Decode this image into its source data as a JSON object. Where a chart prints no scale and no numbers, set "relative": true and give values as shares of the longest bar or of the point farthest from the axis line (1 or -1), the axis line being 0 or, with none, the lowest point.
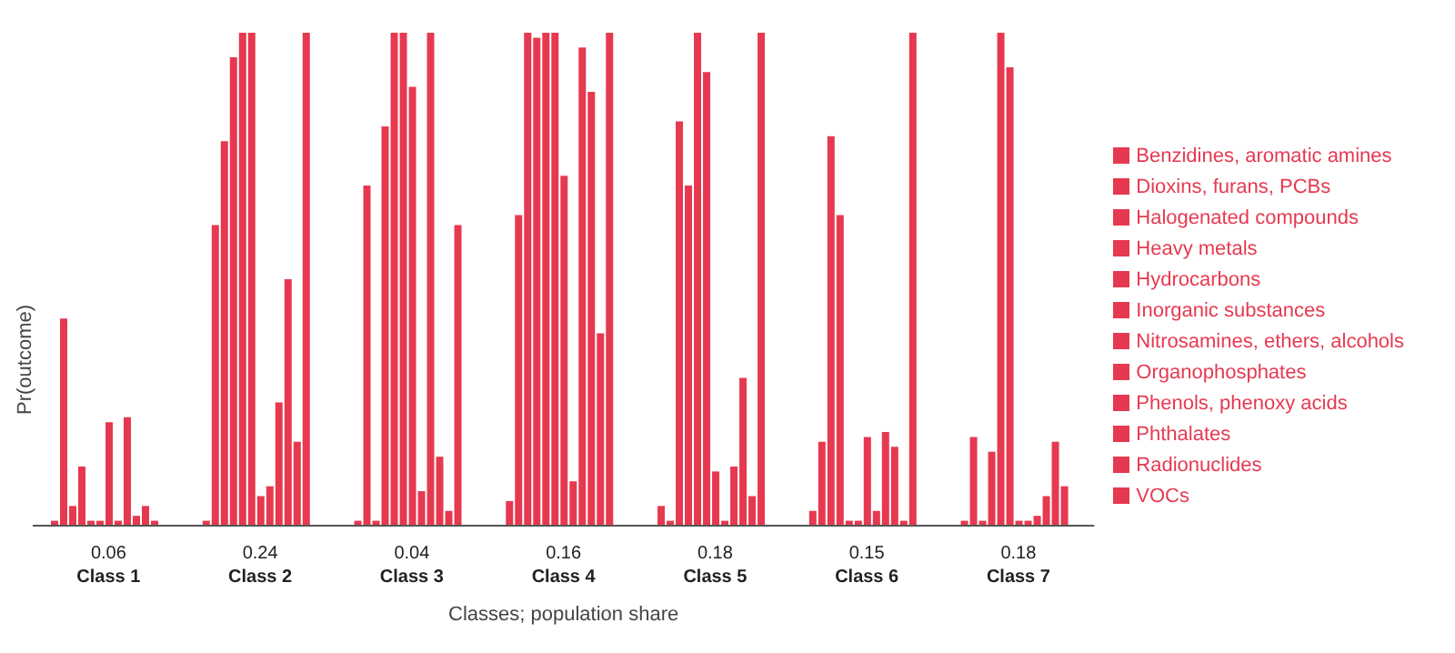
{
  "chart_data": {
    "type": "bar",
    "relative": true,
    "xlabel": "Classes; population share",
    "ylabel": "Pr(outcome)",
    "categories": [
      "0.06\nClass 1",
      "0.24\nClass 2",
      "0.04\nClass 3",
      "0.16\nClass 4",
      "0.18\nClass 5",
      "0.15\nClass 6",
      "0.18\nClass 7"
    ],
    "legend": "right",
    "series": [
      {
        "name": "Benzidines, aromatic amines",
        "color": "#e63950",
        "values": [
          0.01,
          0.01,
          0.01,
          0.05,
          0.04,
          0.03,
          0.01
        ]
      },
      {
        "name": "Dioxins, furans, PCBs",
        "color": "#e63950",
        "values": [
          0.42,
          0.61,
          0.69,
          0.63,
          0.01,
          0.17,
          0.18
        ]
      },
      {
        "name": "Halogenated compounds",
        "color": "#e63950",
        "values": [
          0.04,
          0.78,
          0.01,
          1.0,
          0.82,
          0.79,
          0.01
        ]
      },
      {
        "name": "Hydrocarbons",
        "color": "#e63950",
        "values": [
          0.12,
          0.95,
          0.81,
          0.99,
          0.69,
          0.63,
          0.15
        ]
      },
      {
        "name": "Inorganic substances",
        "color": "#e63950",
        "values": [
          0.01,
          1.0,
          1.0,
          1.0,
          1.0,
          0.01,
          1.0
        ]
      },
      {
        "name": "Heavy metals",
        "color": "#e63950",
        "values": [
          0.01,
          1.0,
          1.0,
          1.0,
          0.92,
          0.01,
          0.93
        ]
      },
      {
        "name": "Nitrosamines, ethers, alcohols",
        "color": "#e63950",
        "values": [
          0.21,
          0.06,
          0.89,
          0.71,
          0.11,
          0.18,
          0.01
        ]
      },
      {
        "name": "Organophosphates",
        "color": "#e63950",
        "values": [
          0.01,
          0.08,
          0.07,
          0.09,
          0.01,
          0.03,
          0.01
        ]
      },
      {
        "name": "Phenols, phenoxy acids",
        "color": "#e63950",
        "values": [
          0.22,
          0.25,
          1.0,
          0.97,
          0.12,
          0.19,
          0.02
        ]
      },
      {
        "name": "Phthalates",
        "color": "#e63950",
        "values": [
          0.02,
          0.5,
          0.14,
          0.88,
          0.3,
          0.16,
          0.06
        ]
      },
      {
        "name": "Radionuclides",
        "color": "#e63950",
        "values": [
          0.04,
          0.17,
          0.03,
          0.39,
          0.06,
          0.01,
          0.17
        ]
      },
      {
        "name": "VOCs",
        "color": "#e63950",
        "values": [
          0.01,
          1.0,
          0.61,
          1.0,
          1.0,
          1.0,
          0.08
        ]
      }
    ]
  }
}
